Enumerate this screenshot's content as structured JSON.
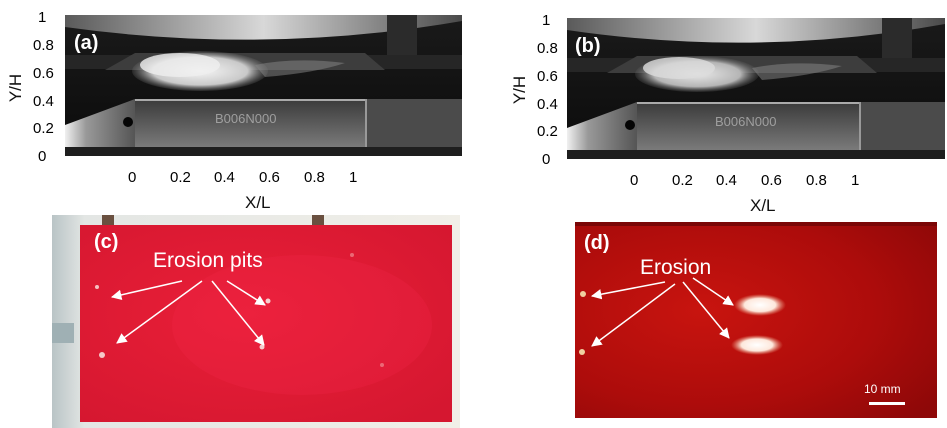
{
  "panel_a": {
    "label": "(a)",
    "y_axis": {
      "label": "Y/H",
      "ticks": [
        "1",
        "0.8",
        "0.6",
        "0.4",
        "0.2",
        "0"
      ]
    },
    "x_axis": {
      "label": "X/L",
      "ticks": [
        "0",
        "0.2",
        "0.4",
        "0.6",
        "0.8",
        "1"
      ]
    },
    "photo_text": "B006N000"
  },
  "panel_b": {
    "label": "(b)",
    "y_axis": {
      "label": "Y/H",
      "ticks": [
        "1",
        "0.8",
        "0.6",
        "0.4",
        "0.2",
        "0"
      ]
    },
    "x_axis": {
      "label": "X/L",
      "ticks": [
        "0",
        "0.2",
        "0.4",
        "0.6",
        "0.8",
        "1"
      ]
    },
    "photo_text": "B006N000"
  },
  "panel_c": {
    "label": "(c)",
    "annotation": "Erosion pits",
    "color": "#e01a32"
  },
  "panel_d": {
    "label": "(d)",
    "annotation": "Erosion",
    "scale_bar": "10 mm",
    "color": "#b10b0b"
  }
}
